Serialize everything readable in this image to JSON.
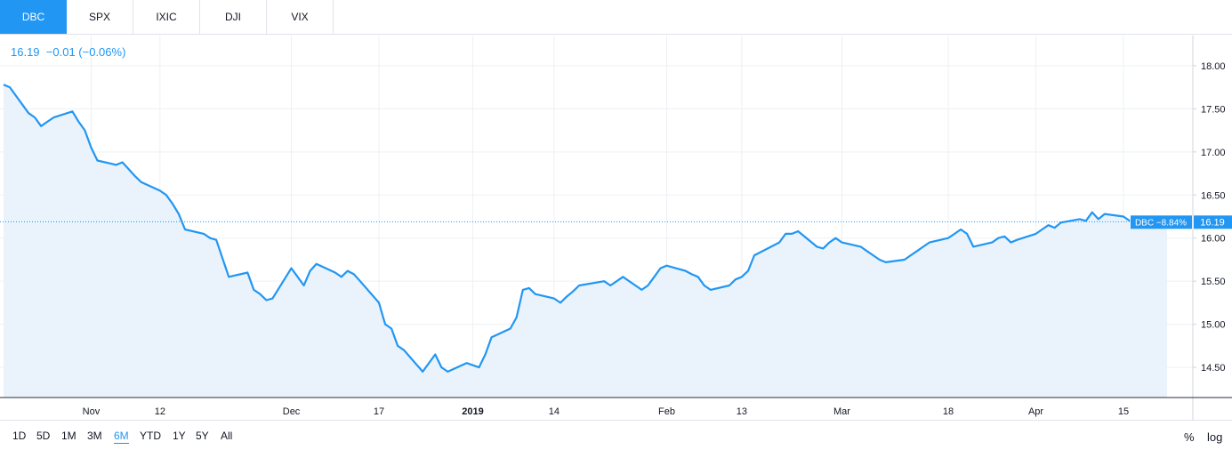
{
  "tabs": [
    {
      "label": "DBC",
      "active": true
    },
    {
      "label": "SPX",
      "active": false
    },
    {
      "label": "IXIC",
      "active": false
    },
    {
      "label": "DJI",
      "active": false
    },
    {
      "label": "VIX",
      "active": false
    }
  ],
  "quote": {
    "price": "16.19",
    "change": "−0.01 (−0.06%)"
  },
  "ranges": [
    {
      "label": "1D",
      "active": false
    },
    {
      "label": "5D",
      "active": false
    },
    {
      "label": "1M",
      "active": false
    },
    {
      "label": "3M",
      "active": false
    },
    {
      "label": "6M",
      "active": true
    },
    {
      "label": "YTD",
      "active": false
    },
    {
      "label": "1Y",
      "active": false
    },
    {
      "label": "5Y",
      "active": false
    },
    {
      "label": "All",
      "active": false
    }
  ],
  "options": {
    "percent": "%",
    "log": "log"
  },
  "colors": {
    "accent": "#2196f3",
    "area": "#eaf3fb",
    "grid": "#eef0f3"
  },
  "chart_data": {
    "type": "area",
    "series": [
      {
        "name": "DBC"
      }
    ],
    "ylim": [
      14.15,
      18.35
    ],
    "y_ticks": [
      "18.00",
      "17.50",
      "17.00",
      "16.50",
      "16.00",
      "15.50",
      "15.00",
      "14.50"
    ],
    "x_ticks": [
      "Nov",
      "12",
      "Dec",
      "17",
      "2019",
      "14",
      "Feb",
      "13",
      "Mar",
      "18",
      "Apr",
      "15"
    ],
    "last_value": 16.19,
    "last_label": "DBC −8.84%",
    "last_value_label": "16.19",
    "grid": true,
    "points": [
      [
        "2018-10-18",
        17.78
      ],
      [
        "2018-10-19",
        17.75
      ],
      [
        "2018-10-22",
        17.45
      ],
      [
        "2018-10-23",
        17.4
      ],
      [
        "2018-10-24",
        17.3
      ],
      [
        "2018-10-25",
        17.35
      ],
      [
        "2018-10-26",
        17.4
      ],
      [
        "2018-10-29",
        17.47
      ],
      [
        "2018-10-30",
        17.35
      ],
      [
        "2018-10-31",
        17.25
      ],
      [
        "2018-11-01",
        17.05
      ],
      [
        "2018-11-02",
        16.9
      ],
      [
        "2018-11-05",
        16.85
      ],
      [
        "2018-11-06",
        16.88
      ],
      [
        "2018-11-07",
        16.8
      ],
      [
        "2018-11-08",
        16.72
      ],
      [
        "2018-11-09",
        16.65
      ],
      [
        "2018-11-12",
        16.55
      ],
      [
        "2018-11-13",
        16.5
      ],
      [
        "2018-11-14",
        16.4
      ],
      [
        "2018-11-15",
        16.28
      ],
      [
        "2018-11-16",
        16.1
      ],
      [
        "2018-11-19",
        16.05
      ],
      [
        "2018-11-20",
        16.0
      ],
      [
        "2018-11-21",
        15.98
      ],
      [
        "2018-11-23",
        15.55
      ],
      [
        "2018-11-26",
        15.6
      ],
      [
        "2018-11-27",
        15.4
      ],
      [
        "2018-11-28",
        15.35
      ],
      [
        "2018-11-29",
        15.28
      ],
      [
        "2018-11-30",
        15.3
      ],
      [
        "2018-12-03",
        15.65
      ],
      [
        "2018-12-04",
        15.55
      ],
      [
        "2018-12-05",
        15.45
      ],
      [
        "2018-12-06",
        15.62
      ],
      [
        "2018-12-07",
        15.7
      ],
      [
        "2018-12-10",
        15.6
      ],
      [
        "2018-12-11",
        15.55
      ],
      [
        "2018-12-12",
        15.62
      ],
      [
        "2018-12-13",
        15.58
      ],
      [
        "2018-12-14",
        15.5
      ],
      [
        "2018-12-17",
        15.25
      ],
      [
        "2018-12-18",
        15.0
      ],
      [
        "2018-12-19",
        14.95
      ],
      [
        "2018-12-20",
        14.75
      ],
      [
        "2018-12-21",
        14.7
      ],
      [
        "2018-12-24",
        14.45
      ],
      [
        "2018-12-26",
        14.65
      ],
      [
        "2018-12-27",
        14.5
      ],
      [
        "2018-12-28",
        14.45
      ],
      [
        "2018-12-31",
        14.55
      ],
      [
        "2019-01-02",
        14.5
      ],
      [
        "2019-01-03",
        14.65
      ],
      [
        "2019-01-04",
        14.85
      ],
      [
        "2019-01-07",
        14.95
      ],
      [
        "2019-01-08",
        15.08
      ],
      [
        "2019-01-09",
        15.4
      ],
      [
        "2019-01-10",
        15.42
      ],
      [
        "2019-01-11",
        15.35
      ],
      [
        "2019-01-14",
        15.3
      ],
      [
        "2019-01-15",
        15.25
      ],
      [
        "2019-01-16",
        15.32
      ],
      [
        "2019-01-17",
        15.38
      ],
      [
        "2019-01-18",
        15.45
      ],
      [
        "2019-01-22",
        15.5
      ],
      [
        "2019-01-23",
        15.45
      ],
      [
        "2019-01-24",
        15.5
      ],
      [
        "2019-01-25",
        15.55
      ],
      [
        "2019-01-28",
        15.4
      ],
      [
        "2019-01-29",
        15.45
      ],
      [
        "2019-01-30",
        15.55
      ],
      [
        "2019-01-31",
        15.65
      ],
      [
        "2019-02-01",
        15.68
      ],
      [
        "2019-02-04",
        15.62
      ],
      [
        "2019-02-05",
        15.58
      ],
      [
        "2019-02-06",
        15.55
      ],
      [
        "2019-02-07",
        15.45
      ],
      [
        "2019-02-08",
        15.4
      ],
      [
        "2019-02-11",
        15.45
      ],
      [
        "2019-02-12",
        15.52
      ],
      [
        "2019-02-13",
        15.55
      ],
      [
        "2019-02-14",
        15.62
      ],
      [
        "2019-02-15",
        15.8
      ],
      [
        "2019-02-19",
        15.95
      ],
      [
        "2019-02-20",
        16.05
      ],
      [
        "2019-02-21",
        16.05
      ],
      [
        "2019-02-22",
        16.08
      ],
      [
        "2019-02-25",
        15.9
      ],
      [
        "2019-02-26",
        15.88
      ],
      [
        "2019-02-27",
        15.95
      ],
      [
        "2019-02-28",
        16.0
      ],
      [
        "2019-03-01",
        15.95
      ],
      [
        "2019-03-04",
        15.9
      ],
      [
        "2019-03-05",
        15.85
      ],
      [
        "2019-03-06",
        15.8
      ],
      [
        "2019-03-07",
        15.75
      ],
      [
        "2019-03-08",
        15.72
      ],
      [
        "2019-03-11",
        15.75
      ],
      [
        "2019-03-12",
        15.8
      ],
      [
        "2019-03-13",
        15.85
      ],
      [
        "2019-03-14",
        15.9
      ],
      [
        "2019-03-15",
        15.95
      ],
      [
        "2019-03-18",
        16.0
      ],
      [
        "2019-03-19",
        16.05
      ],
      [
        "2019-03-20",
        16.1
      ],
      [
        "2019-03-21",
        16.05
      ],
      [
        "2019-03-22",
        15.9
      ],
      [
        "2019-03-25",
        15.95
      ],
      [
        "2019-03-26",
        16.0
      ],
      [
        "2019-03-27",
        16.02
      ],
      [
        "2019-03-28",
        15.95
      ],
      [
        "2019-03-29",
        15.98
      ],
      [
        "2019-04-01",
        16.05
      ],
      [
        "2019-04-02",
        16.1
      ],
      [
        "2019-04-03",
        16.15
      ],
      [
        "2019-04-04",
        16.12
      ],
      [
        "2019-04-05",
        16.18
      ],
      [
        "2019-04-08",
        16.22
      ],
      [
        "2019-04-09",
        16.2
      ],
      [
        "2019-04-10",
        16.3
      ],
      [
        "2019-04-11",
        16.22
      ],
      [
        "2019-04-12",
        16.28
      ],
      [
        "2019-04-15",
        16.25
      ],
      [
        "2019-04-16",
        16.2
      ]
    ]
  }
}
